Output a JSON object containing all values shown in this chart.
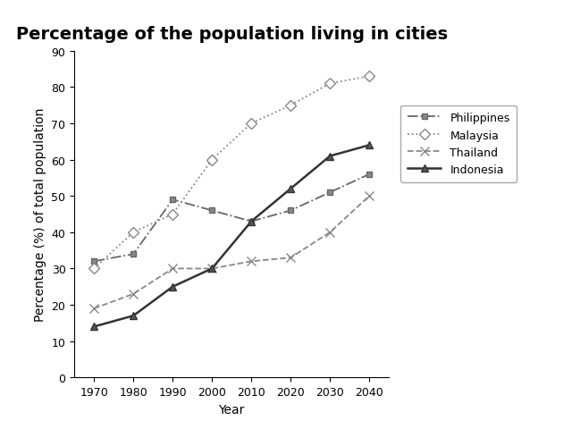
{
  "title": "Percentage of the population living in cities",
  "xlabel": "Year",
  "ylabel": "Percentage (%) of total population",
  "years": [
    1970,
    1980,
    1990,
    2000,
    2010,
    2020,
    2030,
    2040
  ],
  "series": {
    "Philippines": {
      "values": [
        32,
        34,
        49,
        46,
        43,
        46,
        51,
        56
      ],
      "color": "#666666",
      "linestyle": "-.",
      "marker": "s",
      "markersize": 5,
      "markerfacecolor": "#888888",
      "markeredgecolor": "#666666",
      "linewidth": 1.3
    },
    "Malaysia": {
      "values": [
        30,
        40,
        45,
        60,
        70,
        75,
        81,
        83
      ],
      "color": "#888888",
      "linestyle": ":",
      "marker": "D",
      "markersize": 6,
      "markerfacecolor": "white",
      "markeredgecolor": "#888888",
      "linewidth": 1.3
    },
    "Thailand": {
      "values": [
        19,
        23,
        30,
        30,
        32,
        33,
        40,
        50
      ],
      "color": "#888888",
      "linestyle": "--",
      "marker": "x",
      "markersize": 7,
      "markerfacecolor": "#888888",
      "markeredgecolor": "#888888",
      "linewidth": 1.3
    },
    "Indonesia": {
      "values": [
        14,
        17,
        25,
        30,
        43,
        52,
        61,
        64
      ],
      "color": "#333333",
      "linestyle": "-",
      "marker": "^",
      "markersize": 6,
      "markerfacecolor": "#555555",
      "markeredgecolor": "#333333",
      "linewidth": 1.8
    }
  },
  "ylim": [
    0,
    90
  ],
  "yticks": [
    0,
    10,
    20,
    30,
    40,
    50,
    60,
    70,
    80,
    90
  ],
  "background_color": "#ffffff",
  "title_fontsize": 14,
  "axis_label_fontsize": 10,
  "tick_fontsize": 9,
  "legend_fontsize": 9
}
